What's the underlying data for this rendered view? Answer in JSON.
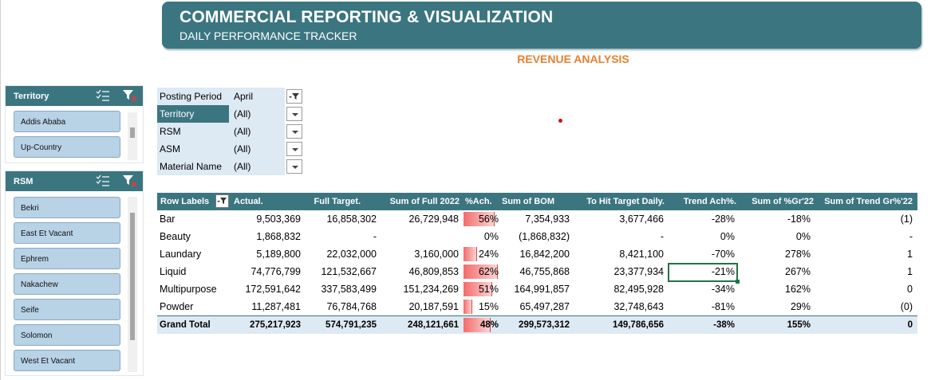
{
  "header": {
    "title": "COMMERCIAL REPORTING & VISUALIZATION",
    "subtitle": "DAILY PERFORMANCE TRACKER"
  },
  "section_title": "REVENUE ANALYSIS",
  "slicers": {
    "territory": {
      "title": "Territory",
      "items": [
        "Addis Ababa",
        "Up-Country"
      ]
    },
    "rsm": {
      "title": "RSM",
      "items": [
        "Bekri",
        "East Et Vacant",
        "Ephrem",
        "Nakachew",
        "Seife",
        "Solomon",
        "West Et Vacant"
      ]
    }
  },
  "filters": [
    {
      "label": "Posting Period",
      "value": "April"
    },
    {
      "label": "Territory",
      "value": "(All)"
    },
    {
      "label": "RSM",
      "value": "(All)"
    },
    {
      "label": "ASM",
      "value": "(All)"
    },
    {
      "label": "Material Name",
      "value": "(All)"
    }
  ],
  "pivot": {
    "headers": [
      "Row Labels",
      "Actual.",
      "Full Target.",
      "Sum of Full 2022",
      "%Ach.",
      "Sum of BOM",
      "To Hit Target Daily.",
      "Trend Ach%.",
      "Sum of %Gr'22",
      "Sum of Trend Gr%'22"
    ],
    "rows": [
      {
        "label": "Bar",
        "actual": "9,503,369",
        "full_target": "16,858,302",
        "full_2022": "26,729,948",
        "ach": "56%",
        "ach_fraction": 0.56,
        "bom": "7,354,933",
        "to_hit": "3,677,466",
        "trend_ach": "-28%",
        "gr22": "-18%",
        "trend_gr": "(1)"
      },
      {
        "label": "Beauty",
        "actual": "1,868,832",
        "full_target": "-",
        "full_2022": "",
        "ach": "0%",
        "ach_fraction": 0,
        "bom": "(1,868,832)",
        "to_hit": "-",
        "trend_ach": "0%",
        "gr22": "0%",
        "trend_gr": "-"
      },
      {
        "label": "Laundary",
        "actual": "5,189,800",
        "full_target": "22,032,000",
        "full_2022": "3,160,000",
        "ach": "24%",
        "ach_fraction": 0.24,
        "bom": "16,842,200",
        "to_hit": "8,421,100",
        "trend_ach": "-70%",
        "gr22": "278%",
        "trend_gr": "1"
      },
      {
        "label": "Liquid",
        "actual": "74,776,799",
        "full_target": "121,532,667",
        "full_2022": "46,809,853",
        "ach": "62%",
        "ach_fraction": 0.62,
        "bom": "46,755,868",
        "to_hit": "23,377,934",
        "trend_ach": "-21%",
        "gr22": "267%",
        "trend_gr": "1"
      },
      {
        "label": "Multipurpose",
        "actual": "172,591,642",
        "full_target": "337,583,499",
        "full_2022": "151,234,269",
        "ach": "51%",
        "ach_fraction": 0.51,
        "bom": "164,991,857",
        "to_hit": "82,495,928",
        "trend_ach": "-34%",
        "gr22": "162%",
        "trend_gr": "0"
      },
      {
        "label": "Powder",
        "actual": "11,287,481",
        "full_target": "76,784,768",
        "full_2022": "20,187,591",
        "ach": "15%",
        "ach_fraction": 0.15,
        "bom": "65,497,287",
        "to_hit": "32,748,643",
        "trend_ach": "-81%",
        "gr22": "29%",
        "trend_gr": "(0)"
      }
    ],
    "grand_total": {
      "label": "Grand Total",
      "actual": "275,217,923",
      "full_target": "574,791,235",
      "full_2022": "248,121,661",
      "ach": "48%",
      "ach_fraction": 0.48,
      "bom": "299,573,312",
      "to_hit": "149,786,656",
      "trend_ach": "-38%",
      "gr22": "155%",
      "trend_gr": "0"
    }
  },
  "colors": {
    "accent": "#3b7680",
    "title_orange": "#e87f2e",
    "databar": "#f36b6b"
  }
}
